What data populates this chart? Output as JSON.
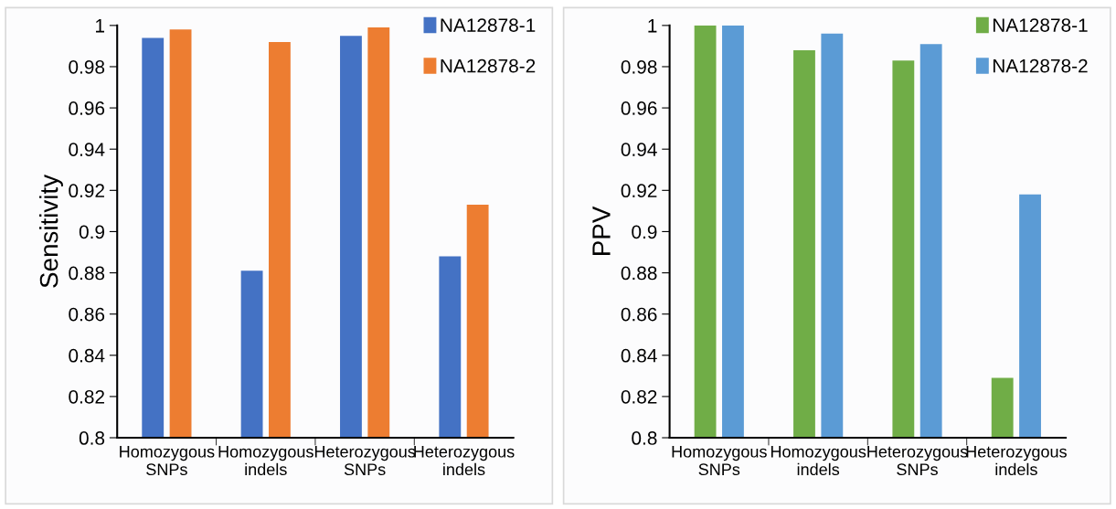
{
  "chart_data": [
    {
      "type": "bar",
      "ylabel": "Sensitivity",
      "categories": [
        "Homozygous\nSNPs",
        "Homozygous\nindels",
        "Heterozygous\nSNPs",
        "Heterozygous\nindels"
      ],
      "series": [
        {
          "name": "NA12878-1",
          "color": "#4472c4",
          "values": [
            0.994,
            0.881,
            0.995,
            0.888
          ]
        },
        {
          "name": "NA12878-2",
          "color": "#ed7d31",
          "values": [
            0.998,
            0.992,
            0.999,
            0.913
          ]
        }
      ],
      "ylim": [
        0.8,
        1
      ],
      "yticks": [
        0.8,
        0.82,
        0.84,
        0.86,
        0.88,
        0.9,
        0.92,
        0.94,
        0.96,
        0.98,
        1
      ],
      "grid": false,
      "legend": "top right"
    },
    {
      "type": "bar",
      "ylabel": "PPV",
      "categories": [
        "Homozygous\nSNPs",
        "Homozygous\nindels",
        "Heterozygous\nSNPs",
        "Heterozygous\nindels"
      ],
      "series": [
        {
          "name": "NA12878-1",
          "color": "#70ad47",
          "values": [
            1.0,
            0.988,
            0.983,
            0.829
          ]
        },
        {
          "name": "NA12878-2",
          "color": "#5b9bd5",
          "values": [
            1.0,
            0.996,
            0.991,
            0.918
          ]
        }
      ],
      "ylim": [
        0.8,
        1
      ],
      "yticks": [
        0.8,
        0.82,
        0.84,
        0.86,
        0.88,
        0.9,
        0.92,
        0.94,
        0.96,
        0.98,
        1
      ],
      "grid": false,
      "legend": "top right"
    }
  ]
}
